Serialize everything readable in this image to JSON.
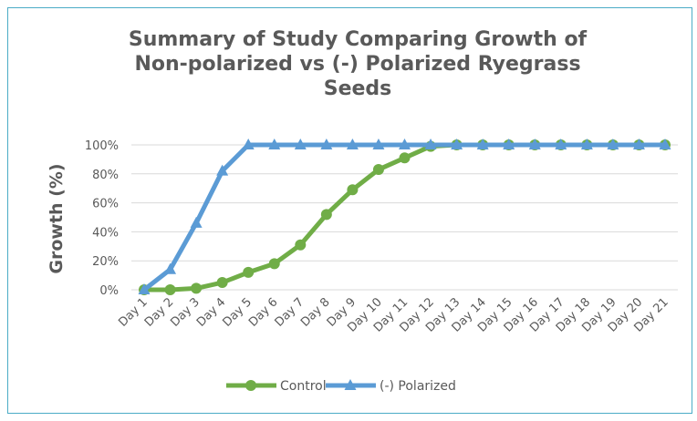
{
  "chart_data": {
    "type": "line",
    "title": [
      "Summary of Study Comparing Growth of",
      "Non-polarized vs (-) Polarized Ryegrass",
      "Seeds"
    ],
    "y_label": "Growth (%)",
    "categories": [
      "Day 1",
      "Day 2",
      "Day 3",
      "Day 4",
      "Day 5",
      "Day 6",
      "Day 7",
      "Day 8",
      "Day 9",
      "Day 10",
      "Day 11",
      "Day 12",
      "Day 13",
      "Day 14",
      "Day 15",
      "Day 16",
      "Day 17",
      "Day 18",
      "Day 19",
      "Day 20",
      "Day 21"
    ],
    "series": [
      {
        "name": "Control",
        "color": "#70ad47",
        "marker": "circle",
        "values": [
          0,
          0,
          1,
          5,
          12,
          18,
          31,
          52,
          69,
          83,
          91,
          99,
          100,
          100,
          100,
          100,
          100,
          100,
          100,
          100,
          100
        ]
      },
      {
        "name": "(-) Polarized",
        "color": "#5b9bd5",
        "marker": "triangle",
        "values": [
          0,
          14,
          46,
          82,
          100,
          100,
          100,
          100,
          100,
          100,
          100,
          100,
          100,
          100,
          100,
          100,
          100,
          100,
          100,
          100,
          100
        ]
      }
    ],
    "ylim": [
      0,
      100
    ],
    "yticks": [
      {
        "value": 0,
        "label": "0%"
      },
      {
        "value": 20,
        "label": "20%"
      },
      {
        "value": 40,
        "label": "40%"
      },
      {
        "value": 60,
        "label": "60%"
      },
      {
        "value": 80,
        "label": "80%"
      },
      {
        "value": 100,
        "label": "100%"
      }
    ],
    "grid": true,
    "legend": "bottom"
  }
}
